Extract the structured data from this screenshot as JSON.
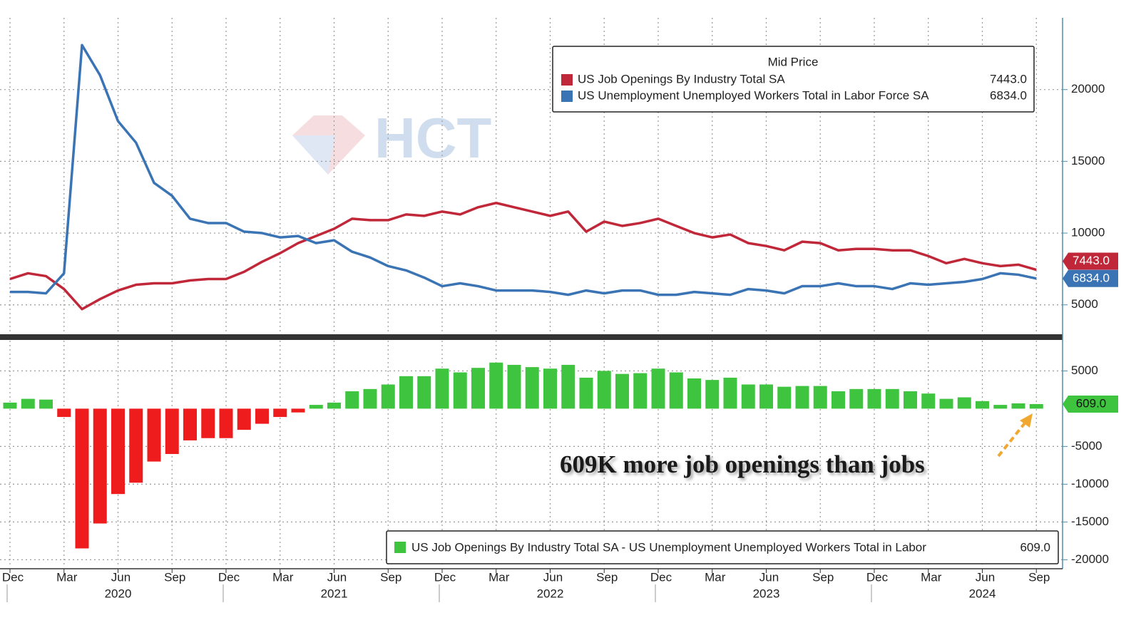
{
  "chart_data": [
    {
      "type": "line",
      "legend_title": "Mid Price",
      "watermark": "HCT",
      "series": [
        {
          "name": "US Job Openings By Industry Total SA",
          "color": "#c0283a",
          "values": [
            6800,
            7200,
            7000,
            6100,
            4700,
            5400,
            6000,
            6400,
            6500,
            6500,
            6700,
            6800,
            6800,
            7300,
            8000,
            8600,
            9300,
            9800,
            10300,
            11000,
            10900,
            10900,
            11300,
            11200,
            11500,
            11300,
            11800,
            12100,
            11800,
            11500,
            11200,
            11500,
            10100,
            10800,
            10500,
            10700,
            11000,
            10500,
            10000,
            9700,
            9900,
            9300,
            9100,
            8800,
            9400,
            9300,
            8800,
            8900,
            8900,
            8800,
            8800,
            8400,
            7900,
            8200,
            7900,
            7700,
            7800,
            7443
          ],
          "value_labels": [
            null,
            null,
            null,
            null,
            null,
            null,
            null,
            null,
            null,
            null,
            null,
            null,
            null,
            null,
            null,
            null,
            null,
            null,
            null,
            null,
            null,
            null,
            null,
            null,
            null,
            null,
            null,
            null,
            null,
            null,
            null,
            null,
            null,
            null,
            null,
            null,
            null,
            null,
            null,
            null,
            null,
            null,
            null,
            null,
            null,
            null,
            null,
            null,
            null,
            null,
            null,
            null,
            null,
            null,
            null,
            null,
            null,
            "7443.0"
          ]
        },
        {
          "name": "US Unemployment Unemployed Workers Total in Labor Force SA",
          "color": "#3a74b4",
          "values": [
            5900,
            5900,
            5800,
            7200,
            23100,
            21000,
            17800,
            16300,
            13500,
            12600,
            11000,
            10700,
            10700,
            10100,
            10000,
            9700,
            9800,
            9300,
            9500,
            8700,
            8300,
            7700,
            7400,
            6900,
            6300,
            6500,
            6300,
            6000,
            6000,
            6000,
            5900,
            5700,
            6000,
            5800,
            6000,
            6000,
            5700,
            5700,
            5900,
            5800,
            5700,
            6100,
            6000,
            5800,
            6300,
            6300,
            6500,
            6300,
            6300,
            6100,
            6500,
            6400,
            6500,
            6600,
            6800,
            7200,
            7100,
            6834
          ],
          "value_labels": [
            null,
            null,
            null,
            null,
            null,
            null,
            null,
            null,
            null,
            null,
            null,
            null,
            null,
            null,
            null,
            null,
            null,
            null,
            null,
            null,
            null,
            null,
            null,
            null,
            null,
            null,
            null,
            null,
            null,
            null,
            null,
            null,
            null,
            null,
            null,
            null,
            null,
            null,
            null,
            null,
            null,
            null,
            null,
            null,
            null,
            null,
            null,
            null,
            null,
            null,
            null,
            null,
            null,
            null,
            null,
            null,
            null,
            "6834.0"
          ]
        }
      ],
      "ylim": [
        3000,
        25000
      ],
      "yticks": [
        5000,
        10000,
        15000,
        20000
      ],
      "grid": true
    },
    {
      "type": "bar",
      "categories": [
        "Dec",
        null,
        null,
        "Mar",
        null,
        null,
        "Jun",
        null,
        null,
        "Sep",
        null,
        null,
        "Dec",
        null,
        null,
        "Mar",
        null,
        null,
        "Jun",
        null,
        null,
        "Sep",
        null,
        null,
        "Dec",
        null,
        null,
        "Mar",
        null,
        null,
        "Jun",
        null,
        null,
        "Sep",
        null,
        null,
        "Dec",
        null,
        null,
        "Mar",
        null,
        null,
        "Jun",
        null,
        null,
        "Sep",
        null,
        null,
        "Dec",
        null,
        null,
        "Mar",
        null,
        null,
        "Jun",
        null,
        null,
        "Sep"
      ],
      "x_groups": [
        "2020",
        "2021",
        "2022",
        "2023",
        "2024"
      ],
      "series": [
        {
          "name": "US Job Openings By Industry Total SA - US Unemployment Unemployed Workers Total in Labor",
          "color": "#3fc43f",
          "negative_color": "#ee1c1c",
          "values": [
            800,
            1300,
            1200,
            -1100,
            -18500,
            -15200,
            -11300,
            -9800,
            -7000,
            -6000,
            -4200,
            -3900,
            -3900,
            -2800,
            -2000,
            -1100,
            -500,
            500,
            800,
            2300,
            2600,
            3200,
            4300,
            4300,
            5300,
            4800,
            5400,
            6100,
            5800,
            5500,
            5300,
            5800,
            4100,
            5000,
            4600,
            4700,
            5300,
            4800,
            4000,
            3800,
            4100,
            3200,
            3200,
            2900,
            3000,
            3000,
            2300,
            2600,
            2600,
            2600,
            2300,
            2000,
            1300,
            1500,
            1000,
            500,
            700,
            609
          ],
          "value_labels": [
            null,
            null,
            null,
            null,
            null,
            null,
            null,
            null,
            null,
            null,
            null,
            null,
            null,
            null,
            null,
            null,
            null,
            null,
            null,
            null,
            null,
            null,
            null,
            null,
            null,
            null,
            null,
            null,
            null,
            null,
            null,
            null,
            null,
            null,
            null,
            null,
            null,
            null,
            null,
            null,
            null,
            null,
            null,
            null,
            null,
            null,
            null,
            null,
            null,
            null,
            null,
            null,
            null,
            null,
            null,
            null,
            null,
            "609.0"
          ]
        }
      ],
      "ylim": [
        -21000,
        9000
      ],
      "yticks": [
        -20000,
        -15000,
        -10000,
        -5000,
        5000
      ],
      "grid": true,
      "annotation": "609K more job openings than jobs"
    }
  ]
}
